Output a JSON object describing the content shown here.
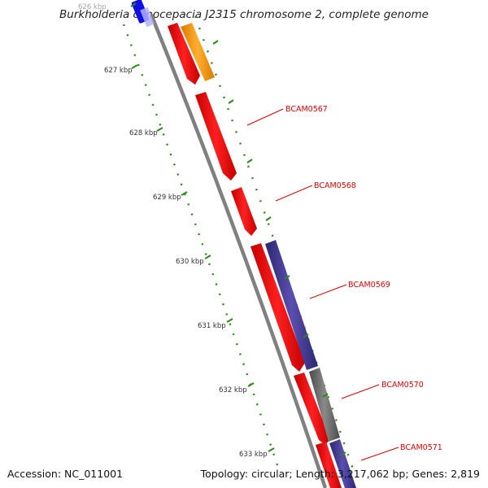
{
  "title": "Burkholderia cenocepacia J2315 chromosome 2, complete genome",
  "footer": {
    "accession": "Accession: NC_011001",
    "summary": "Topology: circular; Length: 3,217,062 bp; Genes: 2,819"
  },
  "ruler": {
    "unit": "kbp",
    "ticks": [
      "626 kbp",
      "627 kbp",
      "628 kbp",
      "629 kbp",
      "630 kbp",
      "631 kbp",
      "632 kbp",
      "633 kbp"
    ]
  },
  "genes": [
    {
      "label": "BCAM0567",
      "color": "#ff0000"
    },
    {
      "label": "BCAM0568",
      "color": "#ff0000"
    },
    {
      "label": "BCAM0569",
      "color": "#ff0000"
    },
    {
      "label": "BCAM0570",
      "color": "#ff0000"
    },
    {
      "label": "BCAM0571",
      "color": "#ff0000"
    }
  ],
  "colors": {
    "cds": "#ff0000",
    "inner_feature": "#4b3f9a",
    "orange_feature": "#ff9a00",
    "gray_feature": "#707070",
    "blue_feature": "#1010e0",
    "backbone": "#8a8a8a",
    "ruler_dots": "#2a8a1a",
    "label_text": "#e00000"
  }
}
